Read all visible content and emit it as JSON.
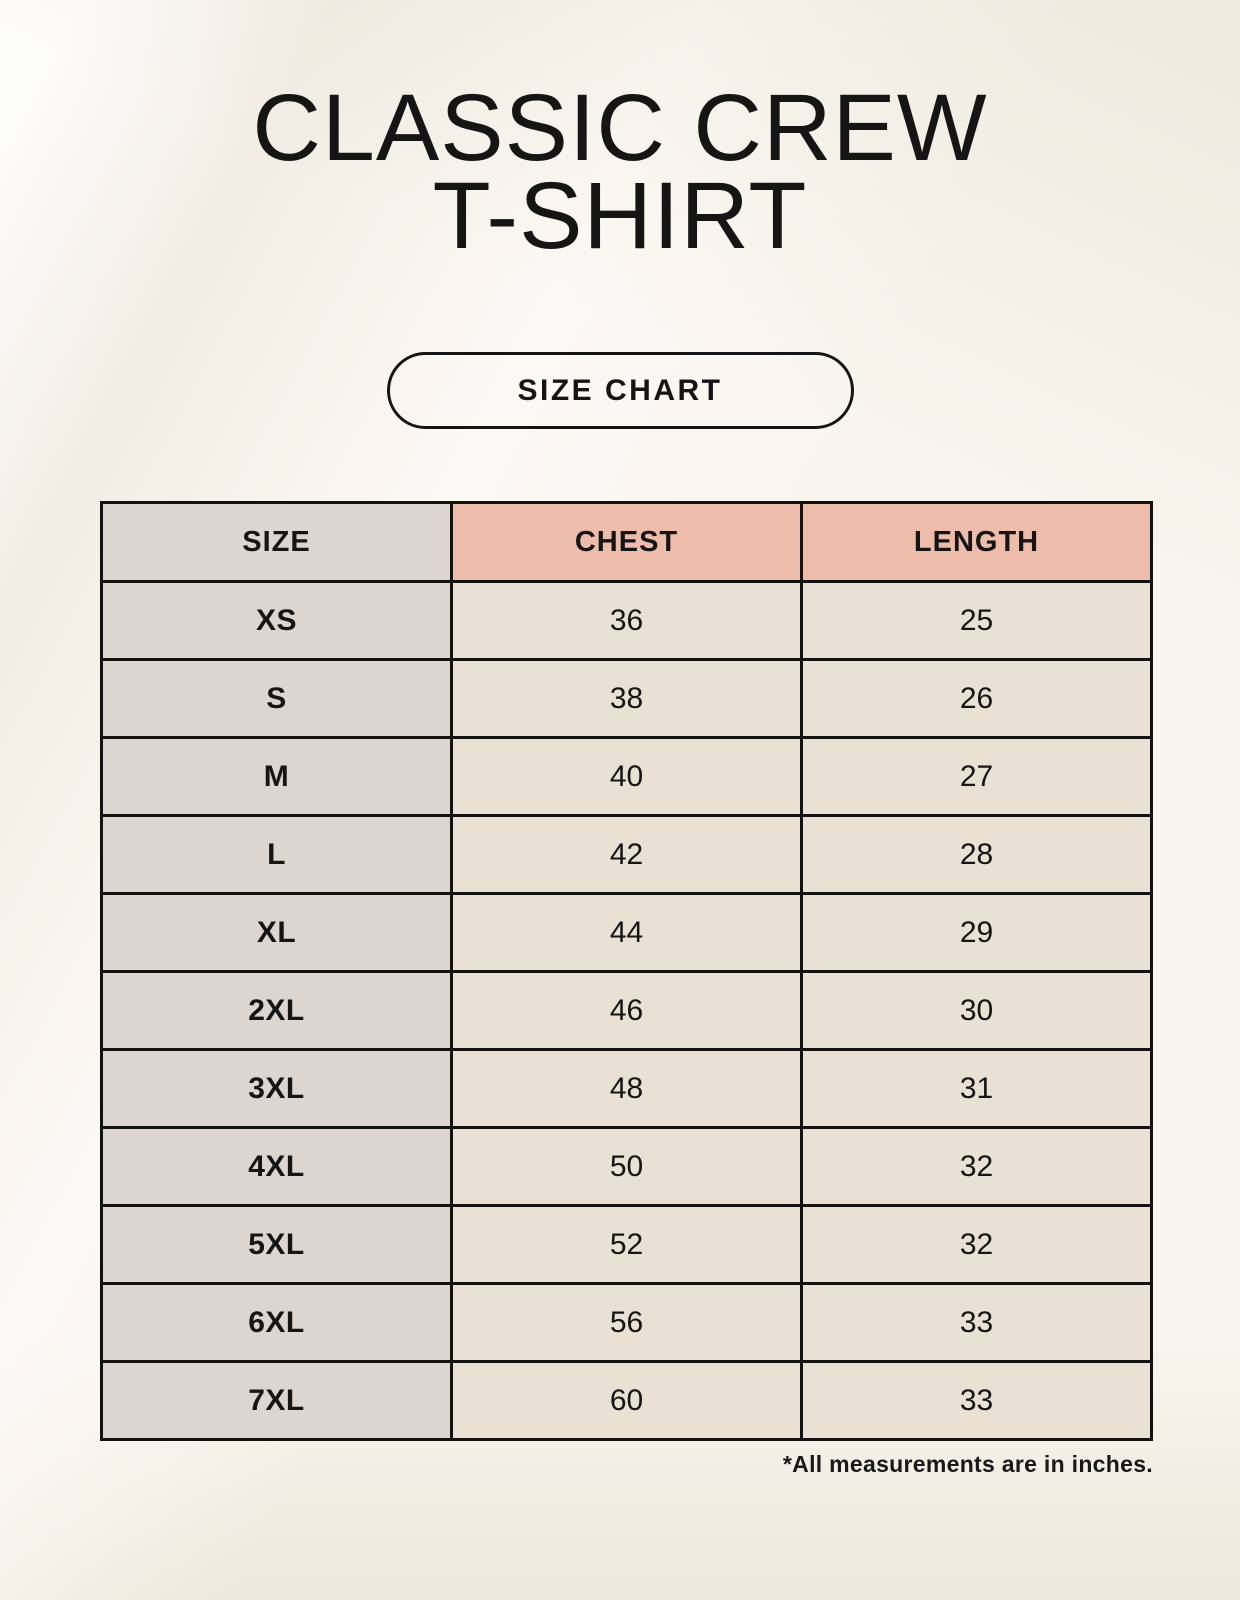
{
  "header": {
    "title_line1": "CLASSIC CREW",
    "title_line2": "T-SHIRT",
    "button_label": "SIZE CHART"
  },
  "footer": {
    "note": "*All measurements are in inches."
  },
  "colors": {
    "background": "#f8f5ee",
    "header_pink": "#eebcab",
    "size_column_gray": "#ddd5cf",
    "cell_cream": "#e8e1d4",
    "border_black": "#131210",
    "text_ink": "#151515"
  },
  "chart_data": {
    "type": "table",
    "title": "CLASSIC CREW T-SHIRT",
    "columns": [
      "SIZE",
      "CHEST",
      "LENGTH"
    ],
    "rows": [
      [
        "XS",
        "36",
        "25"
      ],
      [
        "S",
        "38",
        "26"
      ],
      [
        "M",
        "40",
        "27"
      ],
      [
        "L",
        "42",
        "28"
      ],
      [
        "XL",
        "44",
        "29"
      ],
      [
        "2XL",
        "46",
        "30"
      ],
      [
        "3XL",
        "48",
        "31"
      ],
      [
        "4XL",
        "50",
        "32"
      ],
      [
        "5XL",
        "52",
        "32"
      ],
      [
        "6XL",
        "56",
        "33"
      ],
      [
        "7XL",
        "60",
        "33"
      ]
    ],
    "units": "inches",
    "layout": "first column shaded gray, measurement headers shaded pink, black 3px grid"
  }
}
